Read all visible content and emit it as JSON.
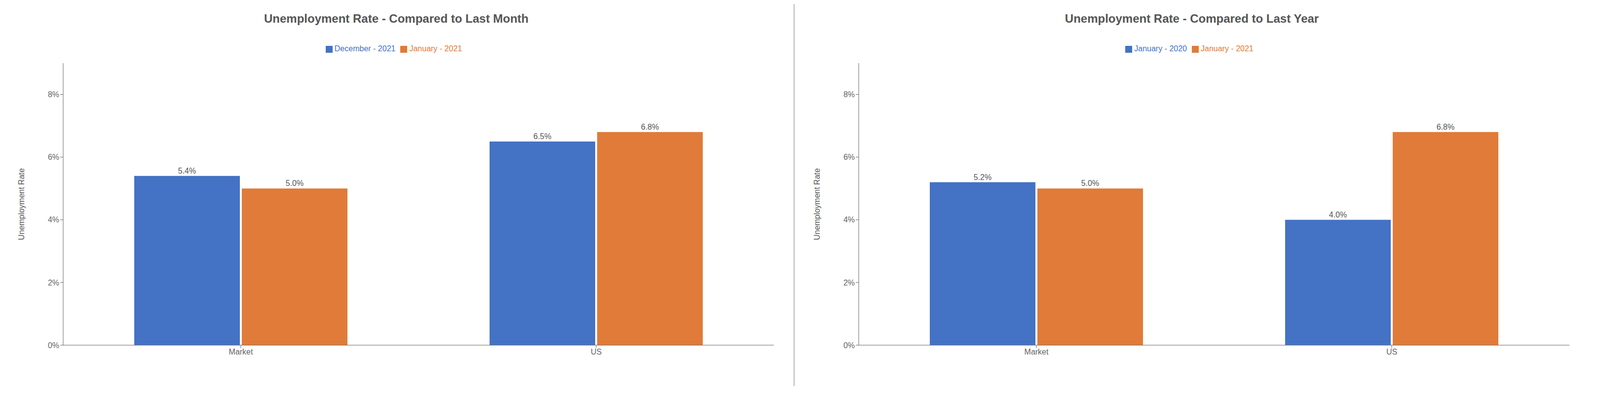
{
  "chart_data": [
    {
      "type": "bar",
      "title": "Unemployment Rate - Compared to Last Month",
      "categories": [
        "Market",
        "US"
      ],
      "series": [
        {
          "name": "December - 2021",
          "color": "#4472C4",
          "values": [
            5.4,
            6.5
          ],
          "value_labels": [
            "5.4%",
            "6.5%"
          ]
        },
        {
          "name": "January - 2021",
          "color": "#E07B39",
          "values": [
            5.0,
            6.8
          ],
          "value_labels": [
            "5.0%",
            "6.8%"
          ]
        }
      ],
      "ylabel": "Unemployment Rate",
      "ylim": [
        0,
        9
      ],
      "yticks": [
        {
          "value": 0,
          "label": "0%"
        },
        {
          "value": 2,
          "label": "2%"
        },
        {
          "value": 4,
          "label": "4%"
        },
        {
          "value": 6,
          "label": "6%"
        },
        {
          "value": 8,
          "label": "8%"
        }
      ],
      "data_labels": true,
      "grid": false,
      "legend": "top"
    },
    {
      "type": "bar",
      "title": "Unemployment Rate - Compared to Last Year",
      "categories": [
        "Market",
        "US"
      ],
      "series": [
        {
          "name": "January - 2020",
          "color": "#4472C4",
          "values": [
            5.2,
            4.0
          ],
          "value_labels": [
            "5.2%",
            "4.0%"
          ]
        },
        {
          "name": "January - 2021",
          "color": "#E07B39",
          "values": [
            5.0,
            6.8
          ],
          "value_labels": [
            "5.0%",
            "6.8%"
          ]
        }
      ],
      "ylabel": "Unemployment Rate",
      "ylim": [
        0,
        9
      ],
      "yticks": [
        {
          "value": 0,
          "label": "0%"
        },
        {
          "value": 2,
          "label": "2%"
        },
        {
          "value": 4,
          "label": "4%"
        },
        {
          "value": 6,
          "label": "6%"
        },
        {
          "value": 8,
          "label": "8%"
        }
      ],
      "data_labels": true,
      "grid": false,
      "legend": "top"
    }
  ]
}
